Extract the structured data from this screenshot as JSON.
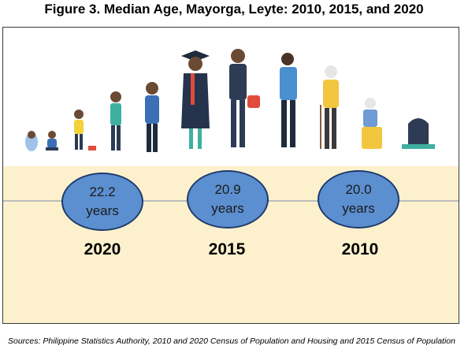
{
  "title": "Figure 3. Median Age, Mayorga, Leyte: 2010, 2015, and 2020",
  "source": "Sources: Philippine Statistics Authority, 2010 and 2020 Census of Population and Housing and 2015 Census of Population",
  "unit_label": "years",
  "illustration": "life-stages-people-illustration",
  "colors": {
    "band": "#fdf1cd",
    "bubble": "#5b8fd0",
    "bubble_border": "#1f3b6d"
  },
  "chart_data": {
    "type": "bubble-infographic",
    "title": "Figure 3. Median Age, Mayorga, Leyte: 2010, 2015, and 2020",
    "categories": [
      "2020",
      "2015",
      "2010"
    ],
    "values": [
      22.2,
      20.9,
      20.0
    ],
    "value_labels": [
      "22.2",
      "20.9",
      "20.0"
    ],
    "unit": "years"
  }
}
